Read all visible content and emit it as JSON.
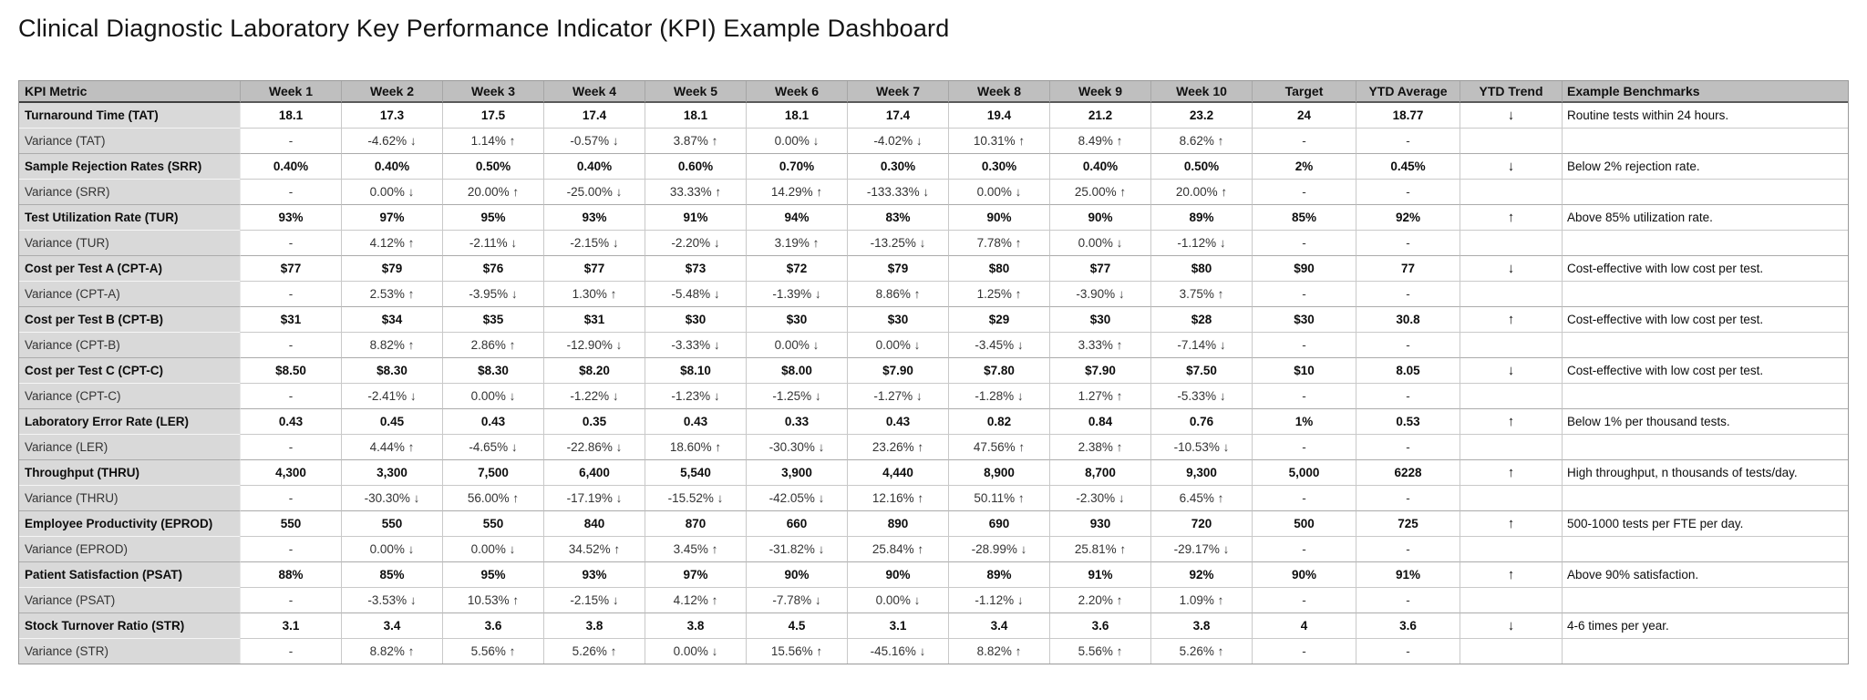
{
  "title": "Clinical Diagnostic Laboratory Key Performance Indicator (KPI) Example Dashboard",
  "table": {
    "columns": [
      "KPI Metric",
      "Week 1",
      "Week 2",
      "Week 3",
      "Week 4",
      "Week 5",
      "Week 6",
      "Week 7",
      "Week 8",
      "Week 9",
      "Week 10",
      "Target",
      "YTD Average",
      "YTD Trend",
      "Example Benchmarks"
    ],
    "rows": [
      {
        "type": "kpi",
        "metric": "Turnaround Time (TAT)",
        "values": [
          "18.1",
          "17.3",
          "17.5",
          "17.4",
          "18.1",
          "18.1",
          "17.4",
          "19.4",
          "21.2",
          "23.2"
        ],
        "target": "24",
        "ytd_average": "18.77",
        "ytd_trend": "↓",
        "benchmark": "Routine tests within 24 hours."
      },
      {
        "type": "variance",
        "metric": "Variance (TAT)",
        "values": [
          "-",
          "-4.62% ↓",
          "1.14% ↑",
          "-0.57% ↓",
          "3.87% ↑",
          "0.00% ↓",
          "-4.02% ↓",
          "10.31% ↑",
          "8.49% ↑",
          "8.62% ↑"
        ],
        "target": "-",
        "ytd_average": "-",
        "ytd_trend": "",
        "benchmark": ""
      },
      {
        "type": "kpi",
        "metric": "Sample Rejection Rates (SRR)",
        "values": [
          "0.40%",
          "0.40%",
          "0.50%",
          "0.40%",
          "0.60%",
          "0.70%",
          "0.30%",
          "0.30%",
          "0.40%",
          "0.50%"
        ],
        "target": "2%",
        "ytd_average": "0.45%",
        "ytd_trend": "↓",
        "benchmark": "Below 2% rejection rate."
      },
      {
        "type": "variance",
        "metric": "Variance (SRR)",
        "values": [
          "-",
          "0.00% ↓",
          "20.00% ↑",
          "-25.00% ↓",
          "33.33% ↑",
          "14.29% ↑",
          "-133.33% ↓",
          "0.00% ↓",
          "25.00% ↑",
          "20.00% ↑"
        ],
        "target": "-",
        "ytd_average": "-",
        "ytd_trend": "",
        "benchmark": ""
      },
      {
        "type": "kpi",
        "metric": "Test Utilization Rate (TUR)",
        "values": [
          "93%",
          "97%",
          "95%",
          "93%",
          "91%",
          "94%",
          "83%",
          "90%",
          "90%",
          "89%"
        ],
        "target": "85%",
        "ytd_average": "92%",
        "ytd_trend": "↑",
        "benchmark": "Above 85% utilization rate."
      },
      {
        "type": "variance",
        "metric": "Variance (TUR)",
        "values": [
          "-",
          "4.12% ↑",
          "-2.11% ↓",
          "-2.15% ↓",
          "-2.20% ↓",
          "3.19% ↑",
          "-13.25% ↓",
          "7.78% ↑",
          "0.00% ↓",
          "-1.12% ↓"
        ],
        "target": "-",
        "ytd_average": "-",
        "ytd_trend": "",
        "benchmark": ""
      },
      {
        "type": "kpi",
        "metric": "Cost per Test A (CPT-A)",
        "values": [
          "$77",
          "$79",
          "$76",
          "$77",
          "$73",
          "$72",
          "$79",
          "$80",
          "$77",
          "$80"
        ],
        "target": "$90",
        "ytd_average": "77",
        "ytd_trend": "↓",
        "benchmark": "Cost-effective with low cost per test."
      },
      {
        "type": "variance",
        "metric": "Variance (CPT-A)",
        "values": [
          "-",
          "2.53% ↑",
          "-3.95% ↓",
          "1.30% ↑",
          "-5.48% ↓",
          "-1.39% ↓",
          "8.86% ↑",
          "1.25% ↑",
          "-3.90% ↓",
          "3.75% ↑"
        ],
        "target": "-",
        "ytd_average": "-",
        "ytd_trend": "",
        "benchmark": ""
      },
      {
        "type": "kpi",
        "metric": "Cost per Test B (CPT-B)",
        "values": [
          "$31",
          "$34",
          "$35",
          "$31",
          "$30",
          "$30",
          "$30",
          "$29",
          "$30",
          "$28"
        ],
        "target": "$30",
        "ytd_average": "30.8",
        "ytd_trend": "↑",
        "benchmark": "Cost-effective with low cost per test."
      },
      {
        "type": "variance",
        "metric": "Variance (CPT-B)",
        "values": [
          "-",
          "8.82% ↑",
          "2.86% ↑",
          "-12.90% ↓",
          "-3.33% ↓",
          "0.00% ↓",
          "0.00% ↓",
          "-3.45% ↓",
          "3.33% ↑",
          "-7.14% ↓"
        ],
        "target": "-",
        "ytd_average": "-",
        "ytd_trend": "",
        "benchmark": ""
      },
      {
        "type": "kpi",
        "metric": "Cost per Test C (CPT-C)",
        "values": [
          "$8.50",
          "$8.30",
          "$8.30",
          "$8.20",
          "$8.10",
          "$8.00",
          "$7.90",
          "$7.80",
          "$7.90",
          "$7.50"
        ],
        "target": "$10",
        "ytd_average": "8.05",
        "ytd_trend": "↓",
        "benchmark": "Cost-effective with low cost per test."
      },
      {
        "type": "variance",
        "metric": "Variance (CPT-C)",
        "values": [
          "-",
          "-2.41% ↓",
          "0.00% ↓",
          "-1.22% ↓",
          "-1.23% ↓",
          "-1.25% ↓",
          "-1.27% ↓",
          "-1.28% ↓",
          "1.27% ↑",
          "-5.33% ↓"
        ],
        "target": "-",
        "ytd_average": "-",
        "ytd_trend": "",
        "benchmark": ""
      },
      {
        "type": "kpi",
        "metric": "Laboratory Error Rate (LER)",
        "values": [
          "0.43",
          "0.45",
          "0.43",
          "0.35",
          "0.43",
          "0.33",
          "0.43",
          "0.82",
          "0.84",
          "0.76"
        ],
        "target": "1%",
        "ytd_average": "0.53",
        "ytd_trend": "↑",
        "benchmark": "Below 1% per thousand tests."
      },
      {
        "type": "variance",
        "metric": "Variance (LER)",
        "values": [
          "-",
          "4.44% ↑",
          "-4.65% ↓",
          "-22.86% ↓",
          "18.60% ↑",
          "-30.30% ↓",
          "23.26% ↑",
          "47.56% ↑",
          "2.38% ↑",
          "-10.53% ↓"
        ],
        "target": "-",
        "ytd_average": "-",
        "ytd_trend": "",
        "benchmark": ""
      },
      {
        "type": "kpi",
        "metric": "Throughput (THRU)",
        "values": [
          "4,300",
          "3,300",
          "7,500",
          "6,400",
          "5,540",
          "3,900",
          "4,440",
          "8,900",
          "8,700",
          "9,300"
        ],
        "target": "5,000",
        "ytd_average": "6228",
        "ytd_trend": "↑",
        "benchmark": "High throughput, n thousands of tests/day."
      },
      {
        "type": "variance",
        "metric": "Variance (THRU)",
        "values": [
          "-",
          "-30.30% ↓",
          "56.00% ↑",
          "-17.19% ↓",
          "-15.52% ↓",
          "-42.05% ↓",
          "12.16% ↑",
          "50.11% ↑",
          "-2.30% ↓",
          "6.45% ↑"
        ],
        "target": "-",
        "ytd_average": "-",
        "ytd_trend": "",
        "benchmark": ""
      },
      {
        "type": "kpi",
        "metric": "Employee Productivity (EPROD)",
        "values": [
          "550",
          "550",
          "550",
          "840",
          "870",
          "660",
          "890",
          "690",
          "930",
          "720"
        ],
        "target": "500",
        "ytd_average": "725",
        "ytd_trend": "↑",
        "benchmark": "500-1000 tests per FTE per day."
      },
      {
        "type": "variance",
        "metric": "Variance (EPROD)",
        "values": [
          "-",
          "0.00% ↓",
          "0.00% ↓",
          "34.52% ↑",
          "3.45% ↑",
          "-31.82% ↓",
          "25.84% ↑",
          "-28.99% ↓",
          "25.81% ↑",
          "-29.17% ↓"
        ],
        "target": "-",
        "ytd_average": "-",
        "ytd_trend": "",
        "benchmark": ""
      },
      {
        "type": "kpi",
        "metric": "Patient Satisfaction (PSAT)",
        "values": [
          "88%",
          "85%",
          "95%",
          "93%",
          "97%",
          "90%",
          "90%",
          "89%",
          "91%",
          "92%"
        ],
        "target": "90%",
        "ytd_average": "91%",
        "ytd_trend": "↑",
        "benchmark": "Above 90% satisfaction."
      },
      {
        "type": "variance",
        "metric": "Variance (PSAT)",
        "values": [
          "-",
          "-3.53% ↓",
          "10.53% ↑",
          "-2.15% ↓",
          "4.12% ↑",
          "-7.78% ↓",
          "0.00% ↓",
          "-1.12% ↓",
          "2.20% ↑",
          "1.09% ↑"
        ],
        "target": "-",
        "ytd_average": "-",
        "ytd_trend": "",
        "benchmark": ""
      },
      {
        "type": "kpi",
        "metric": "Stock Turnover Ratio (STR)",
        "values": [
          "3.1",
          "3.4",
          "3.6",
          "3.8",
          "3.8",
          "4.5",
          "3.1",
          "3.4",
          "3.6",
          "3.8"
        ],
        "target": "4",
        "ytd_average": "3.6",
        "ytd_trend": "↓",
        "benchmark": "4-6 times per year."
      },
      {
        "type": "variance",
        "metric": "Variance (STR)",
        "values": [
          "-",
          "8.82% ↑",
          "5.56% ↑",
          "5.26% ↑",
          "0.00% ↓",
          "15.56% ↑",
          "-45.16% ↓",
          "8.82% ↑",
          "5.56% ↑",
          "5.26% ↑"
        ],
        "target": "-",
        "ytd_average": "-",
        "ytd_trend": "",
        "benchmark": ""
      }
    ]
  },
  "colors": {
    "header_bg": "#bfbfbf",
    "metric_column_bg": "#d9d9d9",
    "cell_bg": "#ffffff",
    "grid_line": "#c9c9c9",
    "outer_border": "#999999",
    "text": "#1a1a1a"
  }
}
